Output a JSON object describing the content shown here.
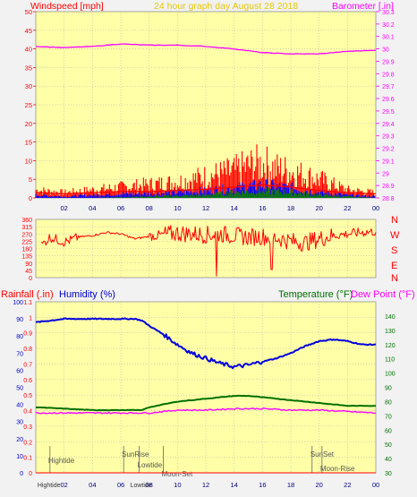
{
  "header": {
    "windspeed_label": "Windspeed [mph]",
    "title": "24 hour graph day   August 28 2018",
    "barometer_label": "Barometer [.in]"
  },
  "colors": {
    "panel_bg": "#ffffa8",
    "page_bg": "#f2f2f2",
    "wind_avg": "#0000ff",
    "wind_gust": "#ff0000",
    "wind_avg_low": "#008000",
    "barometer": "#ff00ff",
    "direction": "#ff0000",
    "humidity": "#0000dd",
    "temperature": "#007000",
    "dewpoint": "#ff00ff",
    "rainfall": "#ff0000",
    "gridline": "#aaaaaa"
  },
  "lower_header": {
    "rainfall_label": "Rainfall (.in)",
    "humidity_label": "Humidity (%)",
    "temperature_label": "Temperature (°F)",
    "dewpoint_label": "Dew Point (°F)"
  },
  "compass": [
    "N",
    "W",
    "S",
    "E",
    "N"
  ],
  "x_ticks": [
    "02",
    "04",
    "06",
    "08",
    "10",
    "12",
    "14",
    "16",
    "18",
    "20",
    "22",
    "00"
  ],
  "events": [
    {
      "label": "Hightide",
      "hour": 1.0
    },
    {
      "label": "SunRise",
      "hour": 6.2
    },
    {
      "label": "Lowtide",
      "hour": 7.3
    },
    {
      "label": "Moon-Set",
      "hour": 9.0
    },
    {
      "label": "SunSet",
      "hour": 19.5
    },
    {
      "label": "Moon-Rise",
      "hour": 20.2
    }
  ],
  "bottom_event_labels": [
    "Hightide",
    "Lowtide"
  ],
  "chart_data": [
    {
      "type": "line",
      "title": "24 hour graph day   August 28 2018",
      "xlabel": "",
      "ylabel": "Windspeed [mph]",
      "y2label": "Barometer [.in]",
      "x_ticks": [
        "02",
        "04",
        "06",
        "08",
        "10",
        "12",
        "14",
        "16",
        "18",
        "20",
        "22",
        "00"
      ],
      "xlim": [
        0,
        24
      ],
      "ylim": [
        0,
        50
      ],
      "y_ticks": [
        0,
        5,
        10,
        15,
        20,
        25,
        30,
        35,
        40,
        45,
        50
      ],
      "y2lim": [
        28.8,
        30.3
      ],
      "y2_ticks": [
        "28.8",
        "28.9",
        "29",
        "29.1",
        "29.2",
        "29.3",
        "29.4",
        "29.5",
        "29.6",
        "29.7",
        "29.8",
        "29.9",
        "30",
        "30.1",
        "30.2",
        "30.3"
      ],
      "grid": true,
      "series": [
        {
          "axis": "y2",
          "x": [
            0,
            2,
            4,
            6,
            8,
            10,
            12,
            14,
            16,
            18,
            20,
            22,
            24
          ],
          "values": [
            30.02,
            30.01,
            30.02,
            30.04,
            30.03,
            30.03,
            30.02,
            30.0,
            29.97,
            29.96,
            29.96,
            29.98,
            29.99
          ]
        },
        {
          "axis": "y",
          "x": [
            0,
            2,
            4,
            6,
            8,
            10,
            12,
            14,
            15,
            16,
            17,
            18,
            20,
            22,
            24
          ],
          "values": [
            1,
            0.5,
            1,
            1.5,
            1.5,
            2,
            2.5,
            3.5,
            4,
            4.5,
            4,
            3.5,
            2,
            1,
            0.5
          ]
        },
        {
          "axis": "y",
          "x": [
            0,
            2,
            4,
            6,
            8,
            10,
            12,
            14,
            15,
            16,
            17,
            18,
            20,
            22,
            24
          ],
          "values": [
            3,
            2,
            3,
            4,
            5,
            6,
            8,
            10,
            12,
            13,
            11,
            10,
            7,
            3,
            2
          ]
        },
        {
          "axis": "y",
          "x": [
            0,
            4,
            8,
            12,
            14,
            16,
            18,
            20,
            24
          ],
          "values": [
            0,
            0,
            0.5,
            1,
            2,
            2.5,
            2,
            1,
            0
          ]
        }
      ]
    },
    {
      "type": "line",
      "title": "",
      "xlabel": "",
      "ylabel": "",
      "xlim": [
        0,
        24
      ],
      "ylim": [
        0,
        360
      ],
      "y_ticks": [
        0,
        45,
        90,
        135,
        180,
        225,
        270,
        315,
        360
      ],
      "grid": true,
      "series": [
        {
          "x": [
            0.4,
            1,
            2,
            2.4,
            3,
            4,
            5,
            6,
            7,
            8,
            9,
            10,
            11,
            12,
            13,
            14,
            15,
            16,
            17,
            18,
            19,
            20,
            21,
            22,
            23,
            24
          ],
          "values": [
            200,
            250,
            220,
            230,
            250,
            260,
            280,
            270,
            240,
            255,
            265,
            275,
            270,
            265,
            270,
            260,
            250,
            255,
            245,
            225,
            215,
            240,
            260,
            270,
            280,
            285
          ]
        }
      ]
    },
    {
      "type": "line",
      "title": "",
      "xlabel": "",
      "ylabel": "Rainfall (.in) / Humidity (%)",
      "y2label": "Temperature (°F) / Dew Point (°F)",
      "x_ticks": [
        "02",
        "04",
        "06",
        "08",
        "10",
        "12",
        "14",
        "16",
        "18",
        "20",
        "22",
        "00"
      ],
      "xlim": [
        0,
        24
      ],
      "humidity_ylim": [
        0,
        100
      ],
      "humidity_ticks": [
        0,
        10,
        20,
        30,
        40,
        50,
        60,
        70,
        80,
        90,
        100
      ],
      "rain_ylim": [
        0,
        1.1
      ],
      "rain_ticks": [
        "0",
        "0.1",
        "0.2",
        "0.3",
        "0.4",
        "0.5",
        "0.6",
        "0.7",
        "0.8",
        "0.9",
        "1",
        "1.1"
      ],
      "temp_ylim": [
        30,
        150
      ],
      "temp_ticks": [
        30,
        40,
        50,
        60,
        70,
        80,
        90,
        100,
        110,
        120,
        130,
        140
      ],
      "grid": true,
      "series": [
        {
          "axis": "humidity",
          "x": [
            0,
            1,
            2,
            3,
            4,
            5,
            6,
            7,
            7.5,
            8,
            9,
            10,
            11,
            12,
            13,
            14,
            15,
            16,
            17,
            18,
            19,
            20,
            21,
            22,
            23,
            24
          ],
          "values": [
            88,
            89,
            90,
            90,
            90,
            90,
            90,
            90,
            89,
            86,
            81,
            75,
            70,
            67,
            64,
            62,
            63,
            65,
            67,
            70,
            74,
            77,
            78,
            77,
            75,
            75
          ]
        },
        {
          "axis": "temp",
          "x": [
            0,
            2,
            4,
            6,
            7.5,
            8,
            9,
            10,
            11,
            12,
            13,
            14,
            15,
            16,
            17,
            18,
            19,
            20,
            21,
            22,
            23,
            24
          ],
          "values": [
            76,
            75,
            74,
            74,
            74,
            76,
            78,
            80,
            81,
            82,
            83,
            84,
            84,
            83,
            82,
            81,
            80,
            79,
            78,
            77,
            77,
            77
          ]
        },
        {
          "axis": "temp",
          "x": [
            0,
            2,
            4,
            6,
            8,
            9,
            10,
            12,
            14,
            16,
            18,
            20,
            22,
            24
          ],
          "values": [
            72,
            72,
            72,
            72,
            72,
            73,
            74,
            74,
            75,
            75,
            74,
            74,
            73,
            72
          ]
        },
        {
          "axis": "rain",
          "x": [
            0,
            24
          ],
          "values": [
            0,
            0
          ]
        }
      ]
    }
  ]
}
